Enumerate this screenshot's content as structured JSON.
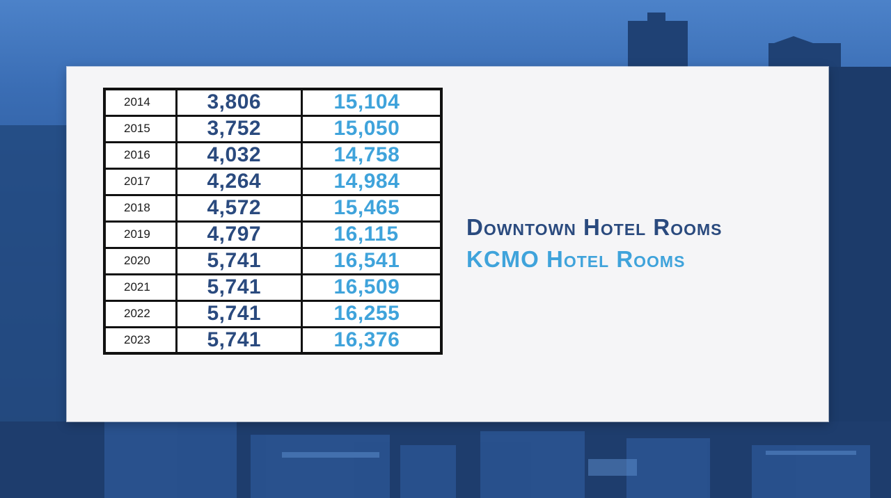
{
  "colors": {
    "downtown": "#2a4a7e",
    "kcmo": "#3fa3db",
    "background": "#3a6db4",
    "panel": "#f5f5f7"
  },
  "legend": {
    "downtown_label": "Downtown Hotel Rooms",
    "kcmo_label": "KCMO Hotel Rooms"
  },
  "chart_data": {
    "type": "table",
    "series": [
      {
        "name": "Downtown Hotel Rooms",
        "values": [
          3806,
          3752,
          4032,
          4264,
          4572,
          4797,
          5741,
          5741,
          5741,
          5741
        ]
      },
      {
        "name": "KCMO Hotel Rooms",
        "values": [
          15104,
          15050,
          14758,
          14984,
          15465,
          16115,
          16541,
          16509,
          16255,
          16376
        ]
      }
    ],
    "rows": [
      {
        "year": "2014",
        "downtown": "3,806",
        "kcmo": "15,104"
      },
      {
        "year": "2015",
        "downtown": "3,752",
        "kcmo": "15,050"
      },
      {
        "year": "2016",
        "downtown": "4,032",
        "kcmo": "14,758"
      },
      {
        "year": "2017",
        "downtown": "4,264",
        "kcmo": "14,984"
      },
      {
        "year": "2018",
        "downtown": "4,572",
        "kcmo": "15,465"
      },
      {
        "year": "2019",
        "downtown": "4,797",
        "kcmo": "16,115"
      },
      {
        "year": "2020",
        "downtown": "5,741",
        "kcmo": "16,541"
      },
      {
        "year": "2021",
        "downtown": "5,741",
        "kcmo": "16,509"
      },
      {
        "year": "2022",
        "downtown": "5,741",
        "kcmo": "16,255"
      },
      {
        "year": "2023",
        "downtown": "5,741",
        "kcmo": "16,376"
      }
    ]
  }
}
